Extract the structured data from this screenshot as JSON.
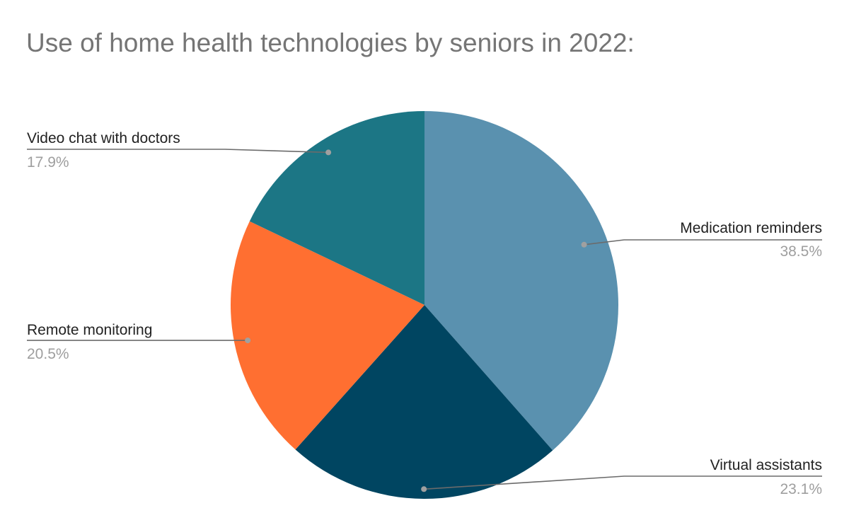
{
  "chart_data": {
    "type": "pie",
    "title": "Use of home health technologies by seniors in 2022:",
    "slices": [
      {
        "label": "Medication reminders",
        "value": 38.5,
        "display": "38.5%",
        "color": "#5a91af"
      },
      {
        "label": "Virtual assistants",
        "value": 23.1,
        "display": "23.1%",
        "color": "#004561"
      },
      {
        "label": "Remote monitoring",
        "value": 20.5,
        "display": "20.5%",
        "color": "#ff6f31"
      },
      {
        "label": "Video chat with doctors",
        "value": 17.9,
        "display": "17.9%",
        "color": "#1c7685"
      }
    ],
    "start_angle": "12 o'clock",
    "direction": "clockwise",
    "legend": "none"
  }
}
